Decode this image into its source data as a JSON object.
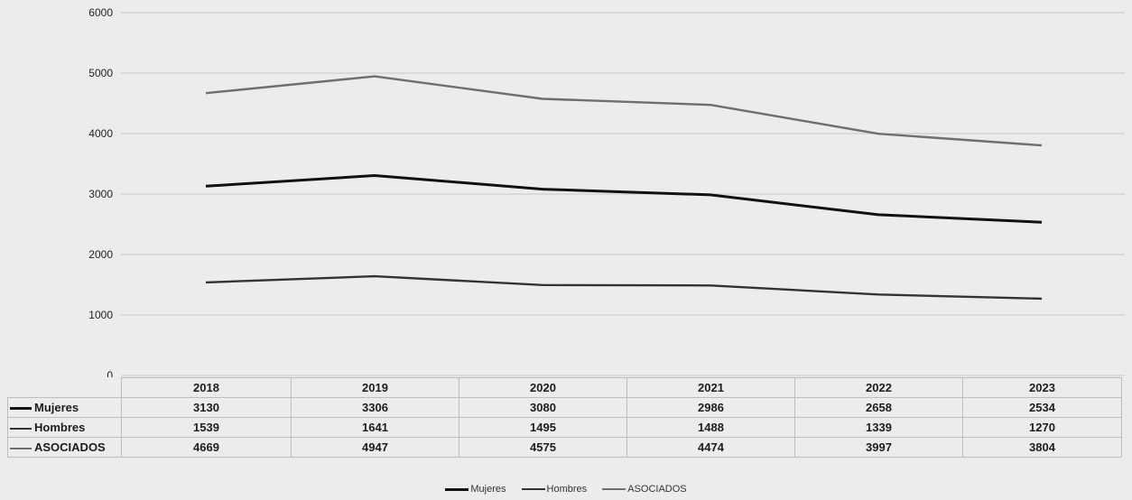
{
  "chart_data": {
    "type": "line",
    "categories": [
      "2018",
      "2019",
      "2020",
      "2021",
      "2022",
      "2023"
    ],
    "series": [
      {
        "name": "Mujeres",
        "values": [
          3130,
          3306,
          3080,
          2986,
          2658,
          2534
        ],
        "color": "#111111"
      },
      {
        "name": "Hombres",
        "values": [
          1539,
          1641,
          1495,
          1488,
          1339,
          1270
        ],
        "color": "#333333"
      },
      {
        "name": "ASOCIADOS",
        "values": [
          4669,
          4947,
          4575,
          4474,
          3997,
          3804
        ],
        "color": "#6f6f6f"
      }
    ],
    "ylim": [
      0,
      6000
    ],
    "yticks": [
      "0",
      "1000",
      "2000",
      "3000",
      "4000",
      "5000",
      "6000"
    ],
    "grid": true,
    "data_table": true,
    "legend_position": "bottom"
  },
  "table": {
    "years": [
      "2018",
      "2019",
      "2020",
      "2021",
      "2022",
      "2023"
    ],
    "rows": [
      {
        "label": "Mujeres",
        "values": [
          "3130",
          "3306",
          "3080",
          "2986",
          "2658",
          "2534"
        ]
      },
      {
        "label": "Hombres",
        "values": [
          "1539",
          "1641",
          "1495",
          "1488",
          "1339",
          "1270"
        ]
      },
      {
        "label": "ASOCIADOS",
        "values": [
          "4669",
          "4947",
          "4575",
          "4474",
          "3997",
          "3804"
        ]
      }
    ]
  },
  "legend": {
    "items": [
      "Mujeres",
      "Hombres",
      "ASOCIADOS"
    ]
  }
}
